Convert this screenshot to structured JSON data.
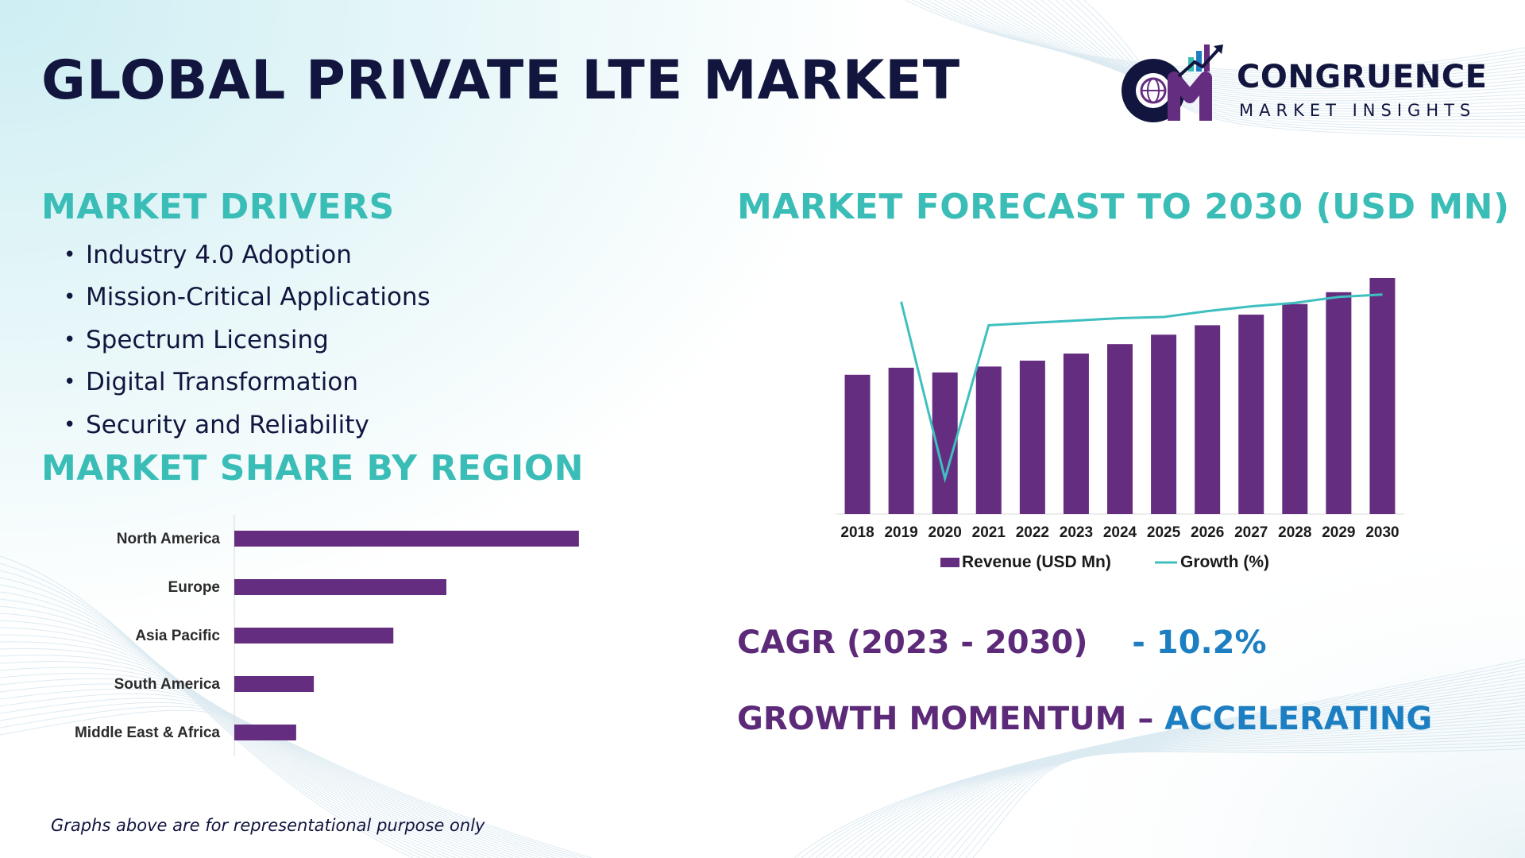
{
  "header": {
    "title": "GLOBAL PRIVATE LTE MARKET",
    "logo_monogram": "CM",
    "logo_name": "CONGRUENCE",
    "logo_tagline": "MARKET INSIGHTS"
  },
  "drivers": {
    "heading": "MARKET DRIVERS",
    "items": [
      "Industry 4.0 Adoption",
      "Mission-Critical Applications",
      "Spectrum Licensing",
      "Digital Transformation",
      "Security and Reliability"
    ]
  },
  "region": {
    "heading": "MARKET SHARE BY REGION"
  },
  "forecast": {
    "heading": "MARKET FORECAST TO 2030 (USD MN)"
  },
  "stats": {
    "cagr_label": "CAGR (2023 - 2030)",
    "cagr_value": "- 10.2%",
    "momentum_label": "GROWTH MOMENTUM –",
    "momentum_value": "ACCELERATING"
  },
  "footer": {
    "disclaimer": "Graphs above are for representational purpose only"
  },
  "colors": {
    "navy": "#12163f",
    "teal": "#3bbdb7",
    "purple": "#652d80",
    "blue": "#1d7fc1",
    "growth_line": "#3fbfbf"
  },
  "chart_data": [
    {
      "type": "bar",
      "orientation": "horizontal",
      "categories": [
        "North America",
        "Europe",
        "Asia Pacific",
        "South America",
        "Middle East & Africa"
      ],
      "values": [
        39,
        24,
        18,
        9,
        7
      ],
      "xlim": [
        0,
        40
      ],
      "grid": false,
      "legend": "none"
    },
    {
      "type": "bar",
      "categories": [
        "2018",
        "2019",
        "2020",
        "2021",
        "2022",
        "2023",
        "2024",
        "2025",
        "2026",
        "2027",
        "2028",
        "2029",
        "2030"
      ],
      "series": [
        {
          "name": "Revenue (USD Mn)",
          "type": "bar",
          "values": [
            59,
            62,
            60,
            62.5,
            65,
            68,
            72,
            76,
            80,
            84.5,
            89,
            94,
            100
          ]
        },
        {
          "name": "Growth (%)",
          "type": "line",
          "values": [
            null,
            90,
            15,
            80,
            81,
            82,
            83,
            83.5,
            86,
            88,
            89.5,
            92,
            93
          ]
        }
      ],
      "ylim": [
        0,
        100
      ],
      "y2lim": [
        0,
        100
      ],
      "grid": false,
      "legend": "bottom"
    }
  ]
}
